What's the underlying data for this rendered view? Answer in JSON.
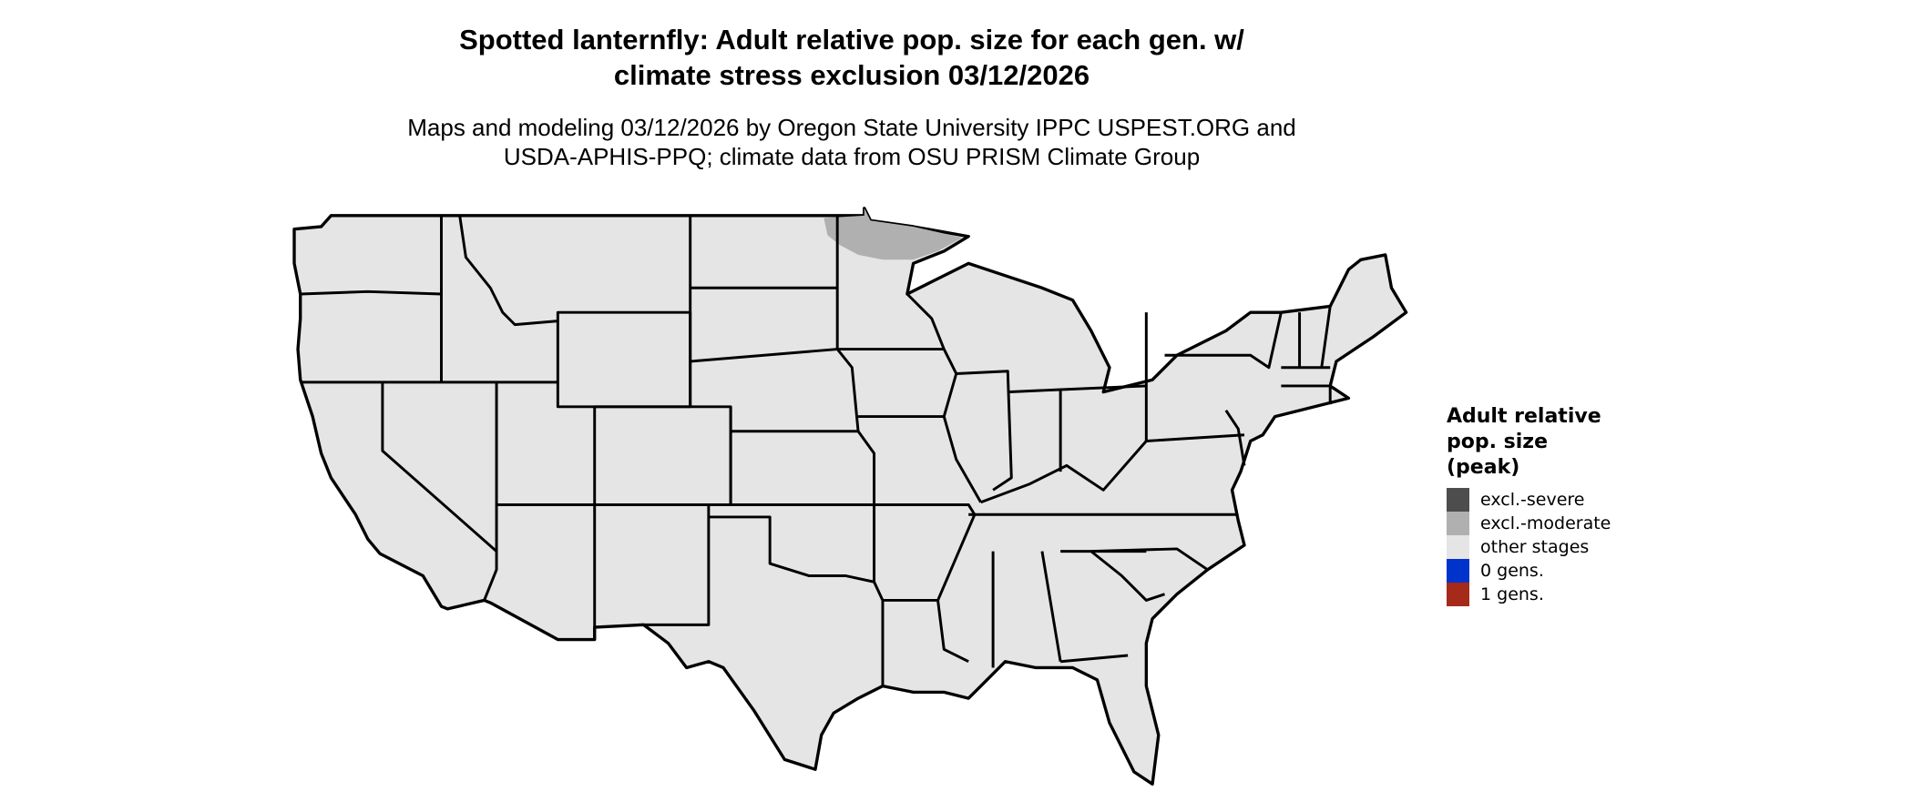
{
  "title": [
    "Spotted lanternfly: Adult relative pop. size for each gen. w/",
    "climate stress exclusion 03/12/2026"
  ],
  "subtitle": [
    "Maps and modeling 03/12/2026 by Oregon State University IPPC USPEST.ORG and",
    "USDA-APHIS-PPQ; climate data from OSU PRISM Climate Group"
  ],
  "map": {
    "region": "Contiguous United States",
    "base_color": "#e5e5e5",
    "border_color": "#000000",
    "notable_areas": [
      {
        "area": "northern Minnesota",
        "category": "excl.-moderate"
      }
    ]
  },
  "legend": {
    "title": [
      "Adult relative",
      "pop. size",
      "(peak)"
    ],
    "items": [
      {
        "label": "excl.-severe",
        "color": "#4d4d4d"
      },
      {
        "label": "excl.-moderate",
        "color": "#b0b0b0"
      },
      {
        "label": "other stages",
        "color": "#e5e5e5"
      },
      {
        "label": "0 gens.",
        "color": "#0033cc"
      },
      {
        "label": "1 gens.",
        "color": "#a52a1a"
      }
    ]
  }
}
